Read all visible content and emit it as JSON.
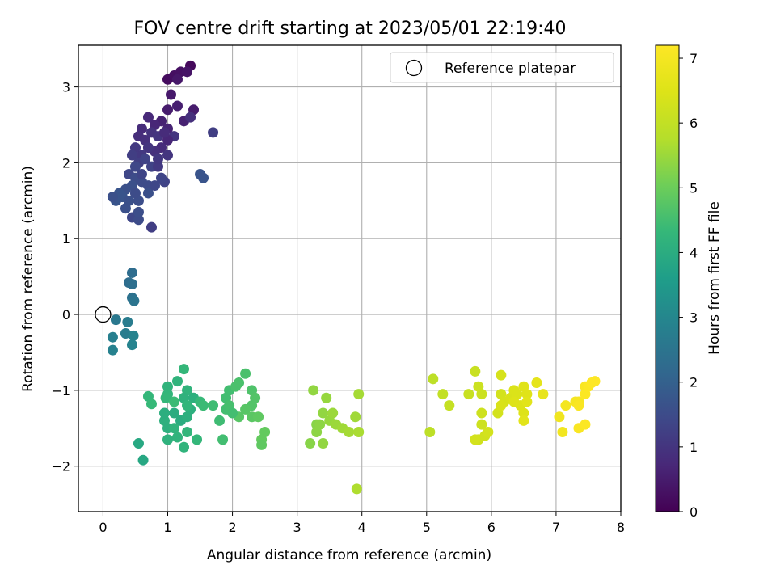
{
  "chart_data": {
    "type": "scatter",
    "title": "FOV centre drift starting at 2023/05/01 22:19:40",
    "xlabel": "Angular distance from reference (arcmin)",
    "ylabel": "Rotation from reference (arcmin)",
    "xlim": [
      -0.38,
      8.0
    ],
    "ylim": [
      -2.6,
      3.55
    ],
    "xticks": [
      0,
      1,
      2,
      3,
      4,
      5,
      6,
      7,
      8
    ],
    "yticks": [
      -2,
      -1,
      0,
      1,
      2,
      3
    ],
    "grid": true,
    "legend": {
      "position": "top-right",
      "entries": [
        "Reference platepar"
      ]
    },
    "reference_point": {
      "x": 0,
      "y": 0
    },
    "colorbar": {
      "label": "Hours from first FF file",
      "colormap": "viridis",
      "range": [
        0,
        7.2
      ],
      "ticks": [
        0,
        1,
        2,
        3,
        4,
        5,
        6,
        7
      ]
    },
    "points": [
      [
        1.0,
        3.1,
        0.2
      ],
      [
        1.1,
        3.15,
        0.25
      ],
      [
        1.2,
        3.2,
        0.3
      ],
      [
        1.35,
        3.28,
        0.15
      ],
      [
        1.3,
        3.2,
        0.35
      ],
      [
        1.15,
        3.1,
        0.4
      ],
      [
        1.05,
        2.9,
        0.45
      ],
      [
        1.0,
        2.7,
        0.5
      ],
      [
        1.15,
        2.75,
        0.55
      ],
      [
        1.4,
        2.7,
        0.5
      ],
      [
        1.25,
        2.55,
        0.6
      ],
      [
        0.9,
        2.55,
        0.6
      ],
      [
        1.0,
        2.45,
        0.65
      ],
      [
        0.8,
        2.5,
        0.7
      ],
      [
        0.7,
        2.6,
        0.75
      ],
      [
        0.6,
        2.45,
        0.8
      ],
      [
        0.55,
        2.35,
        0.85
      ],
      [
        0.65,
        2.3,
        0.9
      ],
      [
        0.75,
        2.4,
        0.95
      ],
      [
        0.85,
        2.35,
        1.0
      ],
      [
        1.1,
        2.35,
        1.0
      ],
      [
        1.0,
        2.3,
        0.7
      ],
      [
        0.9,
        2.2,
        0.8
      ],
      [
        0.8,
        2.15,
        0.9
      ],
      [
        0.7,
        2.2,
        1.0
      ],
      [
        0.6,
        2.1,
        1.1
      ],
      [
        0.5,
        2.2,
        1.1
      ],
      [
        0.45,
        2.1,
        1.2
      ],
      [
        0.55,
        2.0,
        1.2
      ],
      [
        0.65,
        2.05,
        1.3
      ],
      [
        0.75,
        1.95,
        1.3
      ],
      [
        0.85,
        1.95,
        1.1
      ],
      [
        1.0,
        2.1,
        1.0
      ],
      [
        0.95,
        2.4,
        0.8
      ],
      [
        0.5,
        1.95,
        1.4
      ],
      [
        0.4,
        1.85,
        1.4
      ],
      [
        0.5,
        1.8,
        1.5
      ],
      [
        0.6,
        1.75,
        1.5
      ],
      [
        0.7,
        1.7,
        1.5
      ],
      [
        0.45,
        1.7,
        1.6
      ],
      [
        0.35,
        1.65,
        1.6
      ],
      [
        0.25,
        1.6,
        1.7
      ],
      [
        0.3,
        1.55,
        1.7
      ],
      [
        0.2,
        1.5,
        1.7
      ],
      [
        0.15,
        1.55,
        1.6
      ],
      [
        0.4,
        1.5,
        1.6
      ],
      [
        0.55,
        1.5,
        1.55
      ],
      [
        0.5,
        1.6,
        1.5
      ],
      [
        0.45,
        1.28,
        1.4
      ],
      [
        0.55,
        1.25,
        1.5
      ],
      [
        0.55,
        1.35,
        1.55
      ],
      [
        0.75,
        1.15,
        1.2
      ],
      [
        0.95,
        1.75,
        1.3
      ],
      [
        0.7,
        1.6,
        1.6
      ],
      [
        0.8,
        1.7,
        1.4
      ],
      [
        0.9,
        1.8,
        1.35
      ],
      [
        1.5,
        1.85,
        1.7
      ],
      [
        1.55,
        1.8,
        1.7
      ],
      [
        1.7,
        2.4,
        1.2
      ],
      [
        1.35,
        2.6,
        0.9
      ],
      [
        0.85,
        2.05,
        1.05
      ],
      [
        0.6,
        1.85,
        1.35
      ],
      [
        0.35,
        1.4,
        1.6
      ],
      [
        0.45,
        0.55,
        2.3
      ],
      [
        0.4,
        0.42,
        2.3
      ],
      [
        0.45,
        0.4,
        2.35
      ],
      [
        0.45,
        0.22,
        2.4
      ],
      [
        0.48,
        0.18,
        2.5
      ],
      [
        0.2,
        -0.07,
        2.6
      ],
      [
        0.38,
        -0.1,
        2.7
      ],
      [
        0.35,
        -0.25,
        2.7
      ],
      [
        0.15,
        -0.3,
        2.8
      ],
      [
        0.47,
        -0.28,
        2.9
      ],
      [
        0.45,
        -0.4,
        2.9
      ],
      [
        0.15,
        -0.47,
        2.85
      ],
      [
        1.25,
        -0.72,
        4.3
      ],
      [
        1.15,
        -0.88,
        4.2
      ],
      [
        1.3,
        -1.0,
        4.2
      ],
      [
        1.25,
        -1.1,
        4.15
      ],
      [
        1.4,
        -1.1,
        4.1
      ],
      [
        1.0,
        -0.95,
        4.2
      ],
      [
        1.0,
        -1.05,
        4.25
      ],
      [
        0.97,
        -1.1,
        4.3
      ],
      [
        0.7,
        -1.08,
        4.3
      ],
      [
        0.75,
        -1.18,
        4.35
      ],
      [
        1.1,
        -1.15,
        4.4
      ],
      [
        1.5,
        -1.15,
        4.35
      ],
      [
        1.55,
        -1.2,
        4.4
      ],
      [
        1.7,
        -1.2,
        4.45
      ],
      [
        1.9,
        -1.1,
        4.5
      ],
      [
        1.95,
        -1.0,
        4.5
      ],
      [
        2.05,
        -0.95,
        4.6
      ],
      [
        2.1,
        -0.9,
        4.6
      ],
      [
        2.2,
        -0.78,
        4.6
      ],
      [
        2.3,
        -1.0,
        4.65
      ],
      [
        2.35,
        -1.1,
        4.7
      ],
      [
        2.3,
        -1.2,
        4.7
      ],
      [
        2.2,
        -1.25,
        4.75
      ],
      [
        2.1,
        -1.35,
        4.75
      ],
      [
        2.3,
        -1.35,
        4.8
      ],
      [
        2.4,
        -1.35,
        4.85
      ],
      [
        2.5,
        -1.55,
        4.9
      ],
      [
        2.45,
        -1.65,
        4.9
      ],
      [
        2.45,
        -1.72,
        4.85
      ],
      [
        1.85,
        -1.65,
        4.5
      ],
      [
        1.8,
        -1.4,
        4.45
      ],
      [
        1.9,
        -1.25,
        4.5
      ],
      [
        1.95,
        -1.2,
        4.55
      ],
      [
        2.0,
        -1.3,
        4.5
      ],
      [
        1.45,
        -1.65,
        4.3
      ],
      [
        1.3,
        -1.55,
        4.25
      ],
      [
        1.25,
        -1.75,
        4.2
      ],
      [
        1.15,
        -1.62,
        4.2
      ],
      [
        1.0,
        -1.65,
        4.15
      ],
      [
        1.0,
        -1.5,
        4.1
      ],
      [
        0.95,
        -1.4,
        4.1
      ],
      [
        0.95,
        -1.3,
        4.05
      ],
      [
        1.1,
        -1.3,
        4.0
      ],
      [
        1.2,
        -1.4,
        4.0
      ],
      [
        1.3,
        -1.35,
        4.1
      ],
      [
        1.35,
        -1.25,
        4.1
      ],
      [
        1.1,
        -1.5,
        4.2
      ],
      [
        0.55,
        -1.7,
        3.9
      ],
      [
        0.62,
        -1.92,
        3.85
      ],
      [
        1.3,
        -1.2,
        4.25
      ],
      [
        3.2,
        -1.7,
        5.3
      ],
      [
        3.3,
        -1.45,
        5.3
      ],
      [
        3.3,
        -1.55,
        5.35
      ],
      [
        3.25,
        -1.0,
        5.4
      ],
      [
        3.4,
        -1.3,
        5.4
      ],
      [
        3.45,
        -1.1,
        5.45
      ],
      [
        3.5,
        -1.4,
        5.45
      ],
      [
        3.55,
        -1.3,
        5.5
      ],
      [
        3.6,
        -1.45,
        5.5
      ],
      [
        3.7,
        -1.5,
        5.55
      ],
      [
        3.8,
        -1.55,
        5.6
      ],
      [
        3.4,
        -1.7,
        5.4
      ],
      [
        3.9,
        -1.35,
        5.55
      ],
      [
        3.95,
        -1.05,
        5.6
      ],
      [
        3.95,
        -1.55,
        5.65
      ],
      [
        3.35,
        -1.45,
        5.35
      ],
      [
        3.92,
        -2.3,
        5.7
      ],
      [
        5.05,
        -1.55,
        5.9
      ],
      [
        5.1,
        -0.85,
        5.9
      ],
      [
        5.25,
        -1.05,
        6.0
      ],
      [
        5.35,
        -1.2,
        6.05
      ],
      [
        5.65,
        -1.05,
        6.1
      ],
      [
        5.75,
        -0.75,
        6.1
      ],
      [
        5.8,
        -0.95,
        6.15
      ],
      [
        5.85,
        -1.05,
        6.15
      ],
      [
        5.85,
        -1.3,
        6.2
      ],
      [
        5.85,
        -1.45,
        6.2
      ],
      [
        5.8,
        -1.65,
        6.25
      ],
      [
        5.9,
        -1.6,
        6.25
      ],
      [
        5.75,
        -1.65,
        6.3
      ],
      [
        6.1,
        -1.3,
        6.3
      ],
      [
        6.15,
        -1.05,
        6.3
      ],
      [
        6.2,
        -1.15,
        6.35
      ],
      [
        6.15,
        -0.8,
        6.35
      ],
      [
        6.3,
        -1.1,
        6.4
      ],
      [
        6.35,
        -1.0,
        6.45
      ],
      [
        6.4,
        -1.05,
        6.45
      ],
      [
        6.45,
        -1.2,
        6.5
      ],
      [
        6.5,
        -1.3,
        6.5
      ],
      [
        6.5,
        -0.95,
        6.55
      ],
      [
        6.55,
        -1.05,
        6.55
      ],
      [
        6.55,
        -1.15,
        6.6
      ],
      [
        6.5,
        -1.4,
        6.6
      ],
      [
        6.7,
        -0.9,
        6.65
      ],
      [
        6.8,
        -1.05,
        6.7
      ],
      [
        6.15,
        -1.2,
        6.4
      ],
      [
        5.95,
        -1.55,
        6.3
      ],
      [
        6.35,
        -1.15,
        6.5
      ],
      [
        7.05,
        -1.35,
        6.9
      ],
      [
        7.1,
        -1.55,
        6.95
      ],
      [
        7.15,
        -1.2,
        7.0
      ],
      [
        7.3,
        -1.15,
        7.05
      ],
      [
        7.35,
        -1.15,
        7.05
      ],
      [
        7.35,
        -1.5,
        7.1
      ],
      [
        7.45,
        -0.95,
        7.1
      ],
      [
        7.45,
        -1.05,
        7.15
      ],
      [
        7.5,
        -0.95,
        7.15
      ],
      [
        7.55,
        -0.9,
        7.2
      ],
      [
        7.6,
        -0.88,
        7.2
      ],
      [
        7.45,
        -1.45,
        7.15
      ],
      [
        7.35,
        -1.2,
        7.1
      ]
    ]
  }
}
